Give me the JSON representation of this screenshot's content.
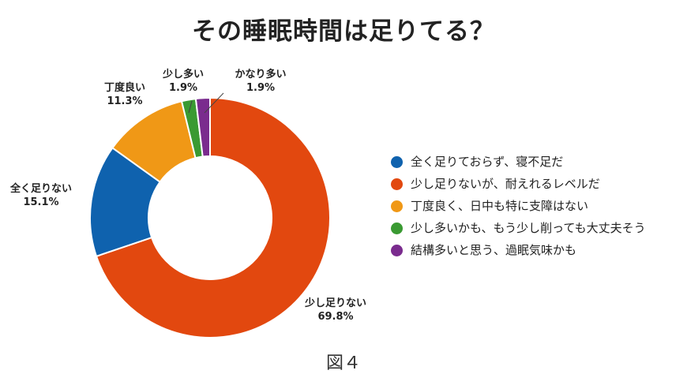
{
  "chart_data": {
    "type": "pie",
    "donut": true,
    "title": "その睡眠時間は足りてる？",
    "slices": [
      {
        "key": "sukoshi-tarinai",
        "label": "少し足りない",
        "value": 69.8,
        "value_label": "69.8%",
        "color": "#e2480f"
      },
      {
        "key": "mattaku-tarinai",
        "label": "全く足りない",
        "value": 15.1,
        "value_label": "15.1%",
        "color": "#0f62ae"
      },
      {
        "key": "choudo-yoi",
        "label": "丁度良い",
        "value": 11.3,
        "value_label": "11.3%",
        "color": "#f09816"
      },
      {
        "key": "sukoshi-ooi",
        "label": "少し多い",
        "value": 1.9,
        "value_label": "1.9%",
        "color": "#3a9a32"
      },
      {
        "key": "kanari-ooi",
        "label": "かなり多い",
        "value": 1.9,
        "value_label": "1.9%",
        "color": "#7a2b8e"
      }
    ],
    "legend": [
      {
        "text": "全く足りておらず、寝不足だ",
        "color": "#0f62ae"
      },
      {
        "text": "少し足りないが、耐えれるレベルだ",
        "color": "#e2480f"
      },
      {
        "text": "丁度良く、日中も特に支障はない",
        "color": "#f09816"
      },
      {
        "text": "少し多いかも、もう少し削っても大丈夫そう",
        "color": "#3a9a32"
      },
      {
        "text": "結構多いと思う、過眠気味かも",
        "color": "#7a2b8e"
      }
    ],
    "legend_placement": "right"
  },
  "caption": "図４"
}
